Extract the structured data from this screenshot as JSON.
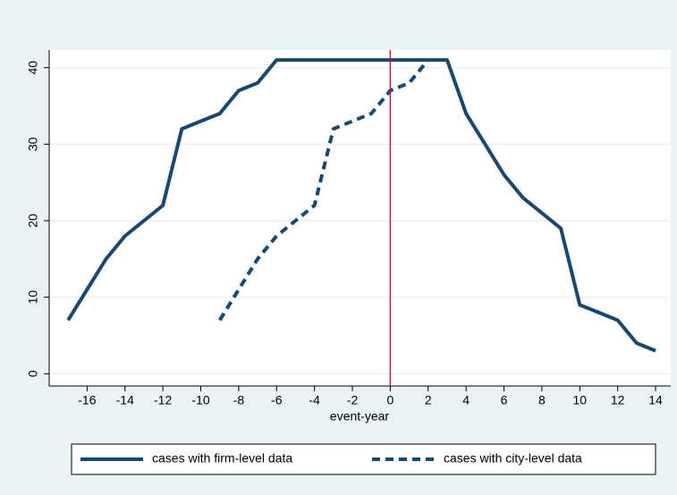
{
  "chart_data": {
    "type": "line",
    "x_label": "event-year",
    "x": [
      -17,
      -16,
      -15,
      -14,
      -13,
      -12,
      -11,
      -10,
      -9,
      -8,
      -7,
      -6,
      -5,
      -4,
      -3,
      -2,
      -1,
      0,
      1,
      2,
      3,
      4,
      5,
      6,
      7,
      8,
      9,
      10,
      11,
      12,
      13,
      14
    ],
    "series": [
      {
        "name": "cases with firm-level data",
        "color": "#1a476f",
        "dash": false,
        "values": [
          7,
          11,
          15,
          18,
          20,
          22,
          32,
          33,
          34,
          37,
          38,
          41,
          41,
          41,
          41,
          41,
          41,
          41,
          41,
          41,
          41,
          34,
          30,
          26,
          23,
          21,
          19,
          9,
          8,
          7,
          4,
          3
        ]
      },
      {
        "name": "cases with city-level data",
        "color": "#1a476f",
        "dash": true,
        "values": [
          null,
          null,
          null,
          null,
          null,
          null,
          null,
          null,
          7,
          11,
          15,
          18,
          20,
          22,
          32,
          33,
          34,
          37,
          38,
          41,
          null,
          null,
          null,
          null,
          null,
          null,
          null,
          null,
          null,
          null,
          null,
          null
        ]
      }
    ],
    "xlim": [
      -18,
      14.8
    ],
    "ylim": [
      -1.6,
      42.3
    ],
    "xticks": [
      -16,
      -14,
      -12,
      -10,
      -8,
      -6,
      -4,
      -2,
      0,
      2,
      4,
      6,
      8,
      10,
      12,
      14
    ],
    "yticks": [
      0,
      10,
      20,
      30,
      40
    ],
    "grid": true,
    "vline": 0,
    "vline_color": "#b0203a",
    "legend": "bottom"
  }
}
